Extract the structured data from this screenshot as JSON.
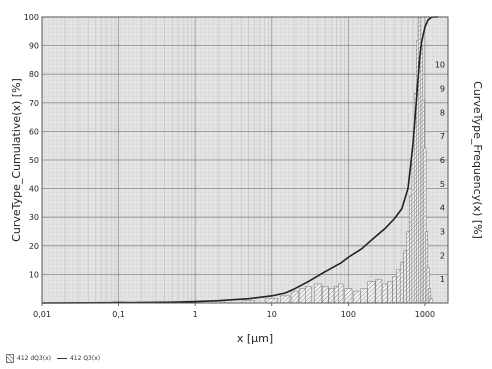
{
  "chart_data": {
    "type": "bar",
    "title": "",
    "xlabel": "x [µm]",
    "ylabel_left": "CurveType_Cumulative(x) [%]",
    "ylabel_right": "CurveType_Frequency(x) [%]",
    "x_scale": "log",
    "xlim": [
      0.01,
      2000
    ],
    "ylim_left": [
      0,
      100
    ],
    "ylim_right": [
      0,
      12
    ],
    "grid": true,
    "legend_position": "bottom-left",
    "x_ticks": [
      {
        "value": 0.01,
        "label": "0,01"
      },
      {
        "value": 0.1,
        "label": "0,1"
      },
      {
        "value": 1,
        "label": "1"
      },
      {
        "value": 10,
        "label": "10"
      },
      {
        "value": 100,
        "label": "100"
      },
      {
        "value": 1000,
        "label": "1000"
      }
    ],
    "y_left_ticks": [
      "10",
      "20",
      "30",
      "40",
      "50",
      "60",
      "70",
      "80",
      "90",
      "100"
    ],
    "y_right_ticks": [
      "1",
      "2",
      "3",
      "4",
      "5",
      "6",
      "7",
      "8",
      "9",
      "10"
    ],
    "series": [
      {
        "name": "412 dQ3(x)",
        "kind": "bar",
        "axis": "right",
        "x": [
          0.03,
          0.05,
          0.1,
          0.2,
          0.5,
          1,
          2,
          5,
          10,
          15,
          20,
          25,
          30,
          40,
          50,
          60,
          70,
          80,
          100,
          130,
          160,
          200,
          250,
          300,
          350,
          400,
          450,
          500,
          550,
          600,
          650,
          700,
          750,
          800,
          850,
          900,
          950,
          1000,
          1050,
          1100,
          1150,
          1200
        ],
        "values": [
          0.02,
          0.03,
          0.05,
          0.04,
          0.05,
          0.06,
          0.08,
          0.1,
          0.2,
          0.3,
          0.5,
          0.6,
          0.7,
          0.8,
          0.7,
          0.6,
          0.7,
          0.8,
          0.6,
          0.5,
          0.6,
          0.9,
          1.0,
          0.8,
          0.9,
          1.1,
          1.4,
          1.7,
          2.2,
          3.0,
          4.5,
          6.5,
          8.8,
          11.0,
          12.0,
          10.8,
          8.5,
          6.5,
          3.0,
          1.5,
          0.6,
          0.2
        ]
      },
      {
        "name": "412 Q3(x)",
        "kind": "line",
        "axis": "left",
        "x": [
          0.01,
          0.1,
          0.5,
          1,
          2,
          5,
          10,
          15,
          20,
          30,
          50,
          80,
          100,
          150,
          200,
          300,
          400,
          500,
          600,
          650,
          700,
          750,
          800,
          850,
          900,
          1000,
          1100,
          1200,
          1300,
          1500
        ],
        "values": [
          0,
          0.1,
          0.3,
          0.5,
          0.8,
          1.5,
          2.5,
          3.5,
          5,
          7.5,
          11,
          14,
          16,
          19,
          22,
          26,
          29.5,
          33,
          40,
          48,
          56,
          66,
          76,
          85,
          91,
          96.5,
          99,
          99.8,
          100,
          100
        ]
      }
    ]
  },
  "legend": {
    "bar_label": "412 dQ3(x)",
    "line_label": "412 Q3(x)"
  },
  "colors": {
    "plot_background": "#dcdcdc",
    "grid": "#8a8a8a",
    "line": "#222222",
    "bar_stroke": "#777777"
  }
}
